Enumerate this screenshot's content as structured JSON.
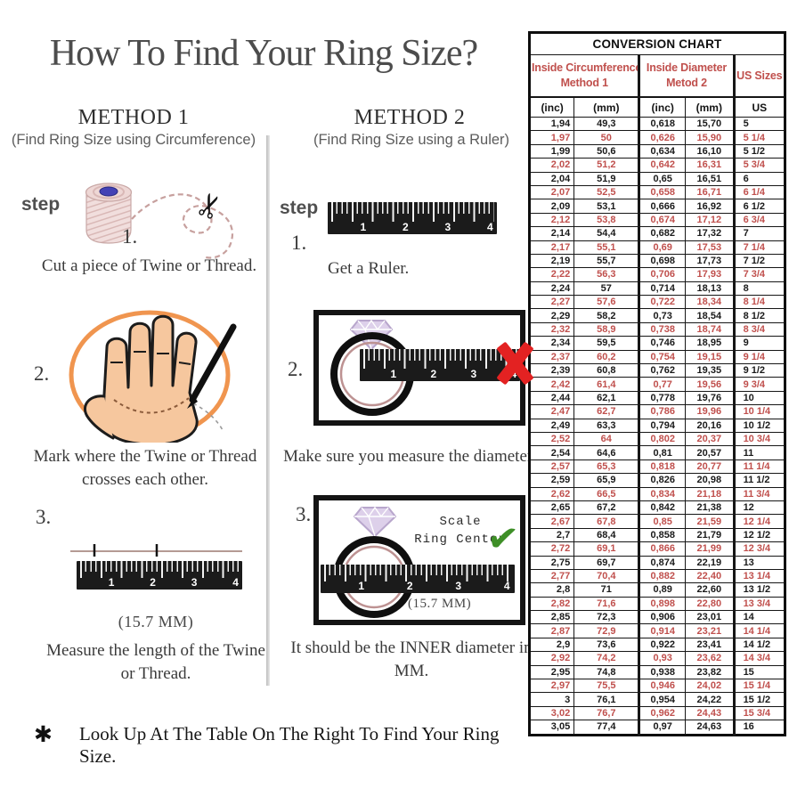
{
  "page": {
    "title": "How To Find Your Ring Size?",
    "footer_bullet": "✱",
    "footer_text": "Look Up At The Table On The Right To Find Your Ring Size."
  },
  "method1": {
    "heading": "METHOD 1",
    "subheading": "(Find Ring Size using Circumference)",
    "step_word": "step",
    "steps": [
      {
        "num": "1.",
        "caption": "Cut a piece of  Twine or Thread."
      },
      {
        "num": "2.",
        "caption": "Mark where the Twine or Thread crosses each other."
      },
      {
        "num": "3.",
        "caption": "Measure the length of the Twine or Thread.",
        "note": "(15.7 MM)"
      }
    ]
  },
  "method2": {
    "heading": "METHOD 2",
    "subheading": "(Find Ring Size using a Ruler)",
    "step_word": "step",
    "steps": [
      {
        "num": "1.",
        "caption": "Get a Ruler."
      },
      {
        "num": "2.",
        "caption": "Make sure you measure the diameter."
      },
      {
        "num": "3.",
        "caption": "It should be the INNER diameter in MM.",
        "note": "(15.7 MM)",
        "annotation_line1": "Scale",
        "annotation_line2": "Ring Center"
      }
    ]
  },
  "ruler": {
    "numbers": [
      "1",
      "2",
      "3",
      "4"
    ]
  },
  "conversion_chart": {
    "title": "CONVERSION CHART",
    "group_headers": [
      {
        "line1": "Inside Circumference",
        "line2": "Method 1"
      },
      {
        "line1": "Inside Diameter",
        "line2": "Metod 2"
      },
      {
        "label": "US Sizes"
      }
    ],
    "sub_headers": [
      "(inc)",
      "(mm)",
      "(inc)",
      "(mm)",
      "US"
    ],
    "colors": {
      "highlight_text": "#c0504d",
      "normal_text": "#1a1a1a",
      "border": "#141414"
    },
    "rows": [
      [
        "1,94",
        "49,3",
        "0,618",
        "15,70",
        "5"
      ],
      [
        "1,97",
        "50",
        "0,626",
        "15,90",
        "5 1/4"
      ],
      [
        "1,99",
        "50,6",
        "0,634",
        "16,10",
        "5 1/2"
      ],
      [
        "2,02",
        "51,2",
        "0,642",
        "16,31",
        "5 3/4"
      ],
      [
        "2,04",
        "51,9",
        "0,65",
        "16,51",
        "6"
      ],
      [
        "2,07",
        "52,5",
        "0,658",
        "16,71",
        "6 1/4"
      ],
      [
        "2,09",
        "53,1",
        "0,666",
        "16,92",
        "6 1/2"
      ],
      [
        "2,12",
        "53,8",
        "0,674",
        "17,12",
        "6 3/4"
      ],
      [
        "2,14",
        "54,4",
        "0,682",
        "17,32",
        "7"
      ],
      [
        "2,17",
        "55,1",
        "0,69",
        "17,53",
        "7 1/4"
      ],
      [
        "2,19",
        "55,7",
        "0,698",
        "17,73",
        "7 1/2"
      ],
      [
        "2,22",
        "56,3",
        "0,706",
        "17,93",
        "7 3/4"
      ],
      [
        "2,24",
        "57",
        "0,714",
        "18,13",
        "8"
      ],
      [
        "2,27",
        "57,6",
        "0,722",
        "18,34",
        "8 1/4"
      ],
      [
        "2,29",
        "58,2",
        "0,73",
        "18,54",
        "8 1/2"
      ],
      [
        "2,32",
        "58,9",
        "0,738",
        "18,74",
        "8 3/4"
      ],
      [
        "2,34",
        "59,5",
        "0,746",
        "18,95",
        "9"
      ],
      [
        "2,37",
        "60,2",
        "0,754",
        "19,15",
        "9 1/4"
      ],
      [
        "2,39",
        "60,8",
        "0,762",
        "19,35",
        "9 1/2"
      ],
      [
        "2,42",
        "61,4",
        "0,77",
        "19,56",
        "9 3/4"
      ],
      [
        "2,44",
        "62,1",
        "0,778",
        "19,76",
        "10"
      ],
      [
        "2,47",
        "62,7",
        "0,786",
        "19,96",
        "10 1/4"
      ],
      [
        "2,49",
        "63,3",
        "0,794",
        "20,16",
        "10 1/2"
      ],
      [
        "2,52",
        "64",
        "0,802",
        "20,37",
        "10 3/4"
      ],
      [
        "2,54",
        "64,6",
        "0,81",
        "20,57",
        "11"
      ],
      [
        "2,57",
        "65,3",
        "0,818",
        "20,77",
        "11 1/4"
      ],
      [
        "2,59",
        "65,9",
        "0,826",
        "20,98",
        "11 1/2"
      ],
      [
        "2,62",
        "66,5",
        "0,834",
        "21,18",
        "11 3/4"
      ],
      [
        "2,65",
        "67,2",
        "0,842",
        "21,38",
        "12"
      ],
      [
        "2,67",
        "67,8",
        "0,85",
        "21,59",
        "12 1/4"
      ],
      [
        "2,7",
        "68,4",
        "0,858",
        "21,79",
        "12 1/2"
      ],
      [
        "2,72",
        "69,1",
        "0,866",
        "21,99",
        "12 3/4"
      ],
      [
        "2,75",
        "69,7",
        "0,874",
        "22,19",
        "13"
      ],
      [
        "2,77",
        "70,4",
        "0,882",
        "22,40",
        "13 1/4"
      ],
      [
        "2,8",
        "71",
        "0,89",
        "22,60",
        "13 1/2"
      ],
      [
        "2,82",
        "71,6",
        "0,898",
        "22,80",
        "13 3/4"
      ],
      [
        "2,85",
        "72,3",
        "0,906",
        "23,01",
        "14"
      ],
      [
        "2,87",
        "72,9",
        "0,914",
        "23,21",
        "14 1/4"
      ],
      [
        "2,9",
        "73,6",
        "0,922",
        "23,41",
        "14 1/2"
      ],
      [
        "2,92",
        "74,2",
        "0,93",
        "23,62",
        "14 3/4"
      ],
      [
        "2,95",
        "74,8",
        "0,938",
        "23,82",
        "15"
      ],
      [
        "2,97",
        "75,5",
        "0,946",
        "24,02",
        "15 1/4"
      ],
      [
        "3",
        "76,1",
        "0,954",
        "24,22",
        "15 1/2"
      ],
      [
        "3,02",
        "76,7",
        "0,962",
        "24,43",
        "15 3/4"
      ],
      [
        "3,05",
        "77,4",
        "0,97",
        "24,63",
        "16"
      ]
    ]
  }
}
